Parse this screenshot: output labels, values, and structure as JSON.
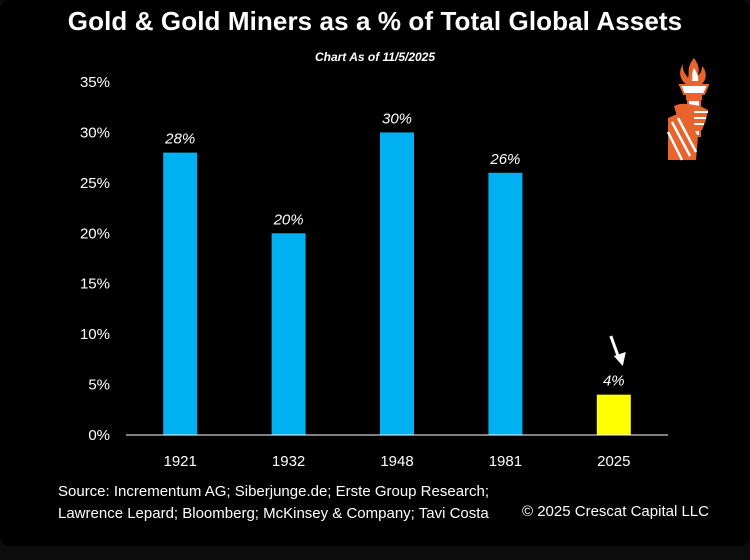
{
  "title": "Gold & Gold Miners as a % of Total Global Assets",
  "subtitle": "Chart As of 11/5/2025",
  "chart_data": {
    "type": "bar",
    "categories": [
      "1921",
      "1932",
      "1948",
      "1981",
      "2025"
    ],
    "values": [
      28,
      20,
      30,
      26,
      4
    ],
    "data_labels": [
      "28%",
      "20%",
      "30%",
      "26%",
      "4%"
    ],
    "ylim": [
      0,
      35
    ],
    "yticks": [
      0,
      5,
      10,
      15,
      20,
      25,
      30,
      35
    ],
    "ytick_labels": [
      "0%",
      "5%",
      "10%",
      "15%",
      "20%",
      "25%",
      "30%",
      "35%"
    ],
    "xlabel": "",
    "ylabel": "",
    "grid": false,
    "bar_colors": [
      "#00b0f0",
      "#00b0f0",
      "#00b0f0",
      "#00b0f0",
      "#ffff00"
    ],
    "annotation": "arrow-pointing-to-2025-bar"
  },
  "footer": {
    "source_line1": "Source: Incrementum AG; Siberjunge.de; Erste Group Research;",
    "source_line2": "Lawrence Lepard; Bloomberg; McKinsey & Company; Tavi Costa",
    "copyright": "© 2025 Crescat Capital LLC"
  },
  "logo": {
    "icon": "torch-hand-icon",
    "color": "#e8642c"
  }
}
